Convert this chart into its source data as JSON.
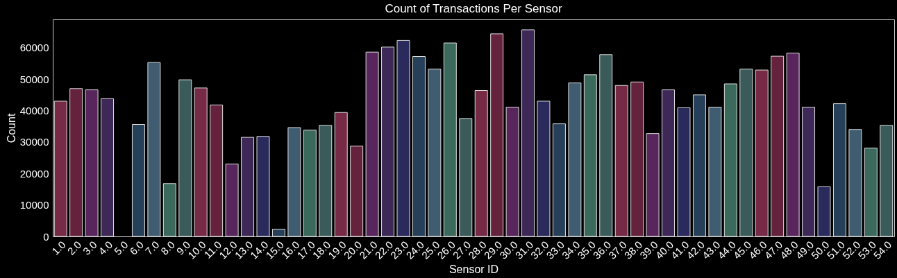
{
  "chart_data": {
    "type": "bar",
    "title": "Count of Transactions Per Sensor",
    "xlabel": "Sensor ID",
    "ylabel": "Count",
    "categories": [
      "1.0",
      "2.0",
      "3.0",
      "4.0",
      "5.0",
      "6.0",
      "7.0",
      "8.0",
      "9.0",
      "10.0",
      "11.0",
      "12.0",
      "13.0",
      "14.0",
      "15.0",
      "16.0",
      "17.0",
      "18.0",
      "19.0",
      "20.0",
      "21.0",
      "22.0",
      "23.0",
      "24.0",
      "25.0",
      "26.0",
      "27.0",
      "28.0",
      "29.0",
      "30.0",
      "31.0",
      "32.0",
      "33.0",
      "34.0",
      "35.0",
      "36.0",
      "37.0",
      "38.0",
      "39.0",
      "40.0",
      "41.0",
      "42.0",
      "43.0",
      "44.0",
      "45.0",
      "46.0",
      "47.0",
      "48.0",
      "49.0",
      "50.0",
      "51.0",
      "52.0",
      "53.0",
      "54.0"
    ],
    "values": [
      43000,
      47000,
      46600,
      43800,
      null,
      35600,
      55300,
      16800,
      49800,
      47200,
      41800,
      23000,
      31500,
      31800,
      2300,
      34600,
      33800,
      35300,
      39400,
      28700,
      58600,
      60200,
      62300,
      57200,
      53200,
      61500,
      37500,
      46400,
      64400,
      41100,
      65700,
      43000,
      35800,
      48800,
      51400,
      57800,
      48000,
      49100,
      32700,
      46600,
      40900,
      45000,
      41100,
      48500,
      53200,
      52900,
      57300,
      58300,
      41100,
      15800,
      42200,
      34000,
      28100,
      35300
    ],
    "colors": [
      "#762a45",
      "#64223d",
      "#58265c",
      "#3e2858",
      "#2a2a5c",
      "#274059",
      "#405c70",
      "#3b6a5d",
      "#3a5b5a",
      "#762a45",
      "#64223d",
      "#58265c",
      "#3e2858",
      "#2a2a5c",
      "#274059",
      "#405c70",
      "#3b6a5d",
      "#3a5b5a",
      "#762a45",
      "#64223d",
      "#58265c",
      "#3e2858",
      "#2a2a5c",
      "#274059",
      "#405c70",
      "#3b6a5d",
      "#3a5b5a",
      "#762a45",
      "#64223d",
      "#58265c",
      "#3e2858",
      "#2a2a5c",
      "#274059",
      "#405c70",
      "#3b6a5d",
      "#3a5b5a",
      "#762a45",
      "#64223d",
      "#58265c",
      "#3e2858",
      "#2a2a5c",
      "#274059",
      "#405c70",
      "#3b6a5d",
      "#3a5b5a",
      "#762a45",
      "#64223d",
      "#58265c",
      "#3e2858",
      "#2a2a5c",
      "#274059",
      "#405c70",
      "#3b6a5d",
      "#3a5b5a"
    ],
    "ylim": [
      0,
      69000
    ],
    "yticks": [
      0,
      10000,
      20000,
      30000,
      40000,
      50000,
      60000
    ],
    "grid": false
  }
}
